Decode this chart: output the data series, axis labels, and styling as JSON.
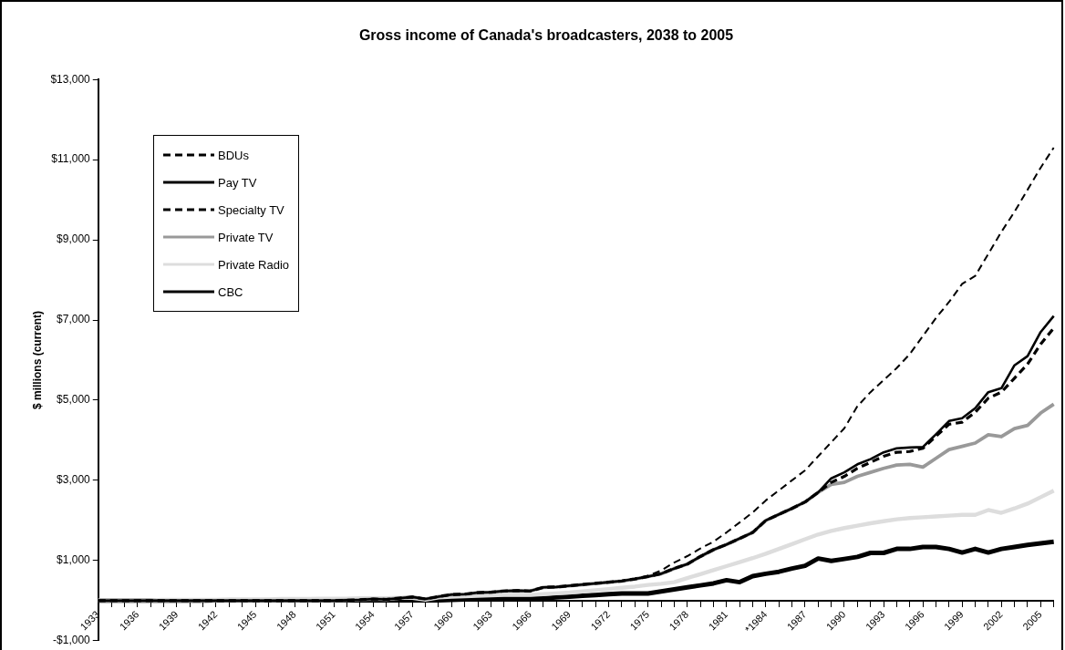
{
  "chart_data": {
    "type": "line",
    "title": "Gross income of Canada's broadcasters, 2038 to 2005",
    "ylabel": "$ millions (current)",
    "categories": [
      "1933",
      null,
      null,
      "1936",
      null,
      null,
      "1939",
      null,
      null,
      "1942",
      null,
      null,
      "1945",
      null,
      null,
      "1948",
      null,
      null,
      "1951",
      null,
      null,
      "1954",
      null,
      null,
      "1957",
      null,
      null,
      "1960",
      null,
      null,
      "1963",
      null,
      null,
      "1966",
      null,
      null,
      "1969",
      null,
      null,
      "1972",
      null,
      null,
      "1975",
      null,
      null,
      "1978",
      null,
      null,
      "1981",
      null,
      null,
      "*1984",
      null,
      null,
      "1987",
      null,
      null,
      "1990",
      null,
      null,
      "1993",
      null,
      null,
      "1996",
      null,
      null,
      "1999",
      null,
      null,
      "2002",
      null,
      null,
      "2005",
      null
    ],
    "ylim": [
      -1000,
      13000
    ],
    "yticks": [
      {
        "value": -1000,
        "label": "-$1,000"
      },
      {
        "value": 1000,
        "label": "$1,000"
      },
      {
        "value": 3000,
        "label": "$3,000"
      },
      {
        "value": 5000,
        "label": "$5,000"
      },
      {
        "value": 7000,
        "label": "$7,000"
      },
      {
        "value": 9000,
        "label": "$9,000"
      },
      {
        "value": 11000,
        "label": "$11,000"
      },
      {
        "value": 13000,
        "label": "$13,000"
      }
    ],
    "grid": false,
    "legend": "top left",
    "marker": "none",
    "series": [
      {
        "name": "BDUs",
        "color": "#000000",
        "line_style": "dashed",
        "values": [
          0,
          0,
          0,
          0,
          0,
          0,
          0,
          0,
          0,
          0,
          0,
          0,
          0,
          0,
          0,
          0,
          0,
          0,
          0,
          10,
          20,
          40,
          30,
          60,
          90,
          40,
          100,
          150,
          160,
          200,
          210,
          240,
          250,
          240,
          330,
          340,
          370,
          400,
          430,
          460,
          490,
          540,
          620,
          750,
          950,
          1110,
          1300,
          1470,
          1700,
          1950,
          2200,
          2500,
          2750,
          3000,
          3250,
          3600,
          3950,
          4300,
          4850,
          5200,
          5500,
          5800,
          6150,
          6600,
          7050,
          7450,
          7900,
          8100,
          8650,
          9200,
          9700,
          10250,
          10800,
          11300
        ]
      },
      {
        "name": "Pay TV",
        "color": "#000000",
        "line_style": "solid",
        "values": [
          0,
          0,
          0,
          0,
          0,
          0,
          0,
          0,
          0,
          0,
          0,
          0,
          0,
          0,
          0,
          0,
          0,
          0,
          0,
          10,
          20,
          40,
          30,
          60,
          90,
          40,
          100,
          150,
          160,
          200,
          210,
          240,
          250,
          240,
          330,
          340,
          370,
          400,
          430,
          460,
          490,
          540,
          600,
          670,
          800,
          910,
          1100,
          1270,
          1400,
          1550,
          1700,
          2000,
          2150,
          2300,
          2460,
          2700,
          3050,
          3200,
          3400,
          3530,
          3700,
          3800,
          3820,
          3830,
          4150,
          4480,
          4550,
          4800,
          5200,
          5300,
          5870,
          6100,
          6700,
          7100
        ]
      },
      {
        "name": "Specialty TV",
        "color": "#000000",
        "line_style": "dashed",
        "values": [
          0,
          0,
          0,
          0,
          0,
          0,
          0,
          0,
          0,
          0,
          0,
          0,
          0,
          0,
          0,
          0,
          0,
          0,
          0,
          10,
          20,
          40,
          30,
          60,
          90,
          40,
          100,
          150,
          160,
          200,
          210,
          240,
          250,
          240,
          330,
          340,
          370,
          400,
          430,
          460,
          490,
          540,
          600,
          670,
          800,
          910,
          1100,
          1270,
          1400,
          1550,
          1700,
          2000,
          2150,
          2300,
          2460,
          2700,
          2950,
          3100,
          3300,
          3450,
          3600,
          3700,
          3720,
          3800,
          4100,
          4400,
          4450,
          4700,
          5050,
          5200,
          5550,
          5900,
          6400,
          6800
        ]
      },
      {
        "name": "Private TV",
        "color": "#999999",
        "line_style": "solid",
        "values": [
          0,
          0,
          0,
          0,
          0,
          0,
          0,
          0,
          0,
          0,
          0,
          0,
          0,
          0,
          0,
          0,
          0,
          0,
          0,
          10,
          20,
          40,
          30,
          60,
          90,
          40,
          100,
          150,
          160,
          200,
          210,
          240,
          250,
          240,
          330,
          340,
          370,
          400,
          430,
          460,
          490,
          540,
          600,
          670,
          800,
          910,
          1100,
          1270,
          1400,
          1550,
          1700,
          2000,
          2150,
          2300,
          2460,
          2700,
          2900,
          2950,
          3100,
          3200,
          3300,
          3380,
          3400,
          3330,
          3550,
          3770,
          3850,
          3930,
          4140,
          4090,
          4290,
          4370,
          4680,
          4900
        ]
      },
      {
        "name": "Private Radio",
        "color": "#dddddd",
        "line_style": "solid",
        "values": [
          10,
          10,
          10,
          10,
          10,
          20,
          20,
          20,
          20,
          20,
          30,
          30,
          30,
          30,
          40,
          40,
          40,
          50,
          50,
          50,
          60,
          60,
          60,
          70,
          70,
          20,
          80,
          100,
          110,
          120,
          130,
          140,
          150,
          140,
          160,
          180,
          200,
          230,
          260,
          290,
          320,
          350,
          390,
          420,
          460,
          560,
          660,
          760,
          860,
          960,
          1060,
          1170,
          1290,
          1410,
          1530,
          1650,
          1740,
          1810,
          1870,
          1930,
          1980,
          2030,
          2060,
          2080,
          2100,
          2120,
          2140,
          2140,
          2260,
          2190,
          2300,
          2420,
          2580,
          2740
        ]
      },
      {
        "name": "CBC",
        "color": "#000000",
        "line_style": "solid",
        "values": [
          0,
          0,
          0,
          0,
          0,
          0,
          0,
          0,
          0,
          10,
          10,
          10,
          10,
          10,
          10,
          10,
          10,
          10,
          10,
          10,
          10,
          10,
          10,
          10,
          10,
          10,
          10,
          20,
          30,
          40,
          50,
          50,
          50,
          50,
          60,
          80,
          100,
          120,
          140,
          160,
          180,
          180,
          180,
          230,
          280,
          330,
          380,
          430,
          510,
          460,
          610,
          670,
          720,
          800,
          870,
          1050,
          990,
          1040,
          1090,
          1190,
          1190,
          1290,
          1290,
          1340,
          1340,
          1290,
          1200,
          1290,
          1200,
          1290,
          1340,
          1390,
          1430,
          1470
        ]
      }
    ]
  }
}
